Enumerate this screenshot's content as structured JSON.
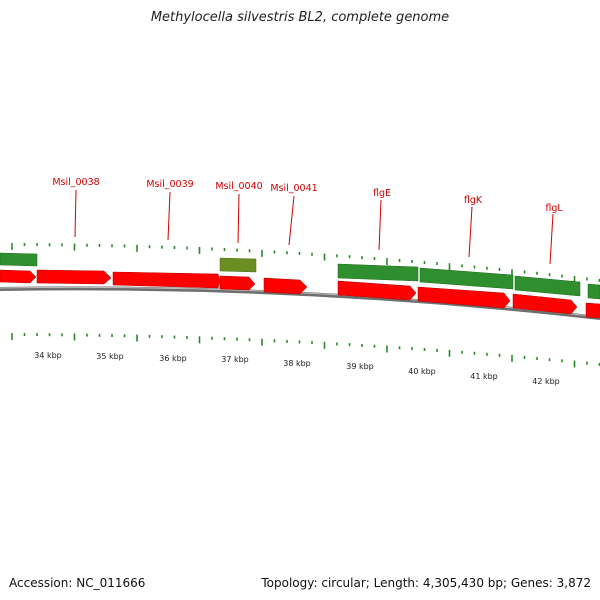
{
  "title": "Methylocella silvestris BL2, complete genome",
  "footer": {
    "accession": "Accession: NC_011666",
    "stats": "Topology: circular; Length: 4,305,430 bp; Genes: 3,872"
  },
  "colors": {
    "gene_label": "#d00000",
    "forward_gene": "#ff0000",
    "reverse_gene": "#2e8b2e",
    "other_feature": "#6b8e23",
    "backbone": "#808080",
    "tick": "#2a8a2a"
  },
  "gene_labels": [
    {
      "text": "Msil_0038"
    },
    {
      "text": "Msil_0039"
    },
    {
      "text": "Msil_0040"
    },
    {
      "text": "Msil_0041"
    },
    {
      "text": "flgE"
    },
    {
      "text": "flgK"
    },
    {
      "text": "flgL"
    }
  ],
  "scale_labels": [
    "34 kbp",
    "35 kbp",
    "36 kbp",
    "37 kbp",
    "38 kbp",
    "39 kbp",
    "40 kbp",
    "41 kbp",
    "42 kbp"
  ]
}
